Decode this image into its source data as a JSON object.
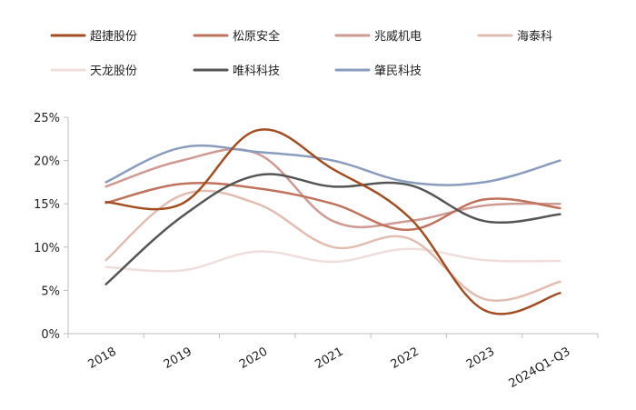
{
  "chart_data": {
    "type": "line",
    "title": "",
    "xlabel": "",
    "ylabel": "",
    "categories": [
      "2018",
      "2019",
      "2020",
      "2021",
      "2022",
      "2023",
      "2024Q1-Q3"
    ],
    "y_ticks": [
      "0%",
      "5%",
      "10%",
      "15%",
      "20%",
      "25%"
    ],
    "ylim": [
      0,
      25
    ],
    "grid": false,
    "legend_position": "top",
    "series": [
      {
        "name": "超捷股份",
        "color": "#A24E22",
        "values": [
          15.2,
          15.0,
          23.5,
          19.0,
          13.5,
          2.7,
          4.7
        ]
      },
      {
        "name": "松原安全",
        "color": "#C0735C",
        "values": [
          15.1,
          17.3,
          16.8,
          15.0,
          12.0,
          15.5,
          14.5
        ]
      },
      {
        "name": "兆威机电",
        "color": "#CE9A93",
        "values": [
          17.0,
          20.0,
          20.8,
          13.0,
          13.0,
          14.8,
          15.0
        ]
      },
      {
        "name": "海泰科",
        "color": "#E1BDB2",
        "values": [
          8.5,
          16.0,
          15.0,
          10.0,
          11.0,
          4.0,
          6.0
        ]
      },
      {
        "name": "天龙股份",
        "color": "#EFDEDC",
        "values": [
          7.7,
          7.3,
          9.5,
          8.3,
          9.8,
          8.5,
          8.4
        ]
      },
      {
        "name": "唯科科技",
        "color": "#555555",
        "values": [
          5.7,
          13.5,
          18.3,
          17.0,
          17.2,
          13.0,
          13.8
        ]
      },
      {
        "name": "肇民科技",
        "color": "#8A9CBE",
        "values": [
          17.5,
          21.5,
          21.0,
          20.0,
          17.5,
          17.5,
          20.0
        ]
      }
    ]
  }
}
